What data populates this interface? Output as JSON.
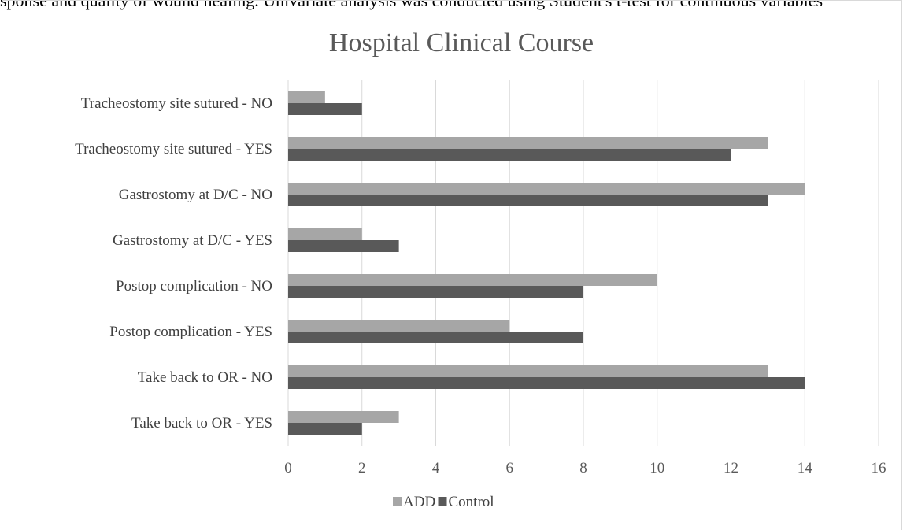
{
  "page": {
    "top_text": "sponse and quality of wound healing. Univariate analysis was conducted using Student's t-test for continuous variables"
  },
  "colors": {
    "ADD": "#a6a6a6",
    "Control": "#595959",
    "grid": "#d9d9d9"
  },
  "chart_data": {
    "type": "bar",
    "orientation": "horizontal",
    "title": "Hospital Clinical Course",
    "categories": [
      "Tracheostomy site sutured - NO",
      "Tracheostomy site sutured - YES",
      "Gastrostomy at D/C - NO",
      "Gastrostomy at D/C - YES",
      "Postop complication - NO",
      "Postop complication - YES",
      "Take back to OR - NO",
      "Take back to OR - YES"
    ],
    "series": [
      {
        "name": "ADD",
        "values": [
          1,
          13,
          14,
          2,
          10,
          6,
          13,
          3
        ]
      },
      {
        "name": "Control",
        "values": [
          2,
          12,
          13,
          3,
          8,
          8,
          14,
          2
        ]
      }
    ],
    "xlim": [
      0,
      16
    ],
    "xticks": [
      0,
      2,
      4,
      6,
      8,
      10,
      12,
      14,
      16
    ],
    "grid": "vertical",
    "legend": "bottom",
    "xlabel": "",
    "ylabel": ""
  }
}
